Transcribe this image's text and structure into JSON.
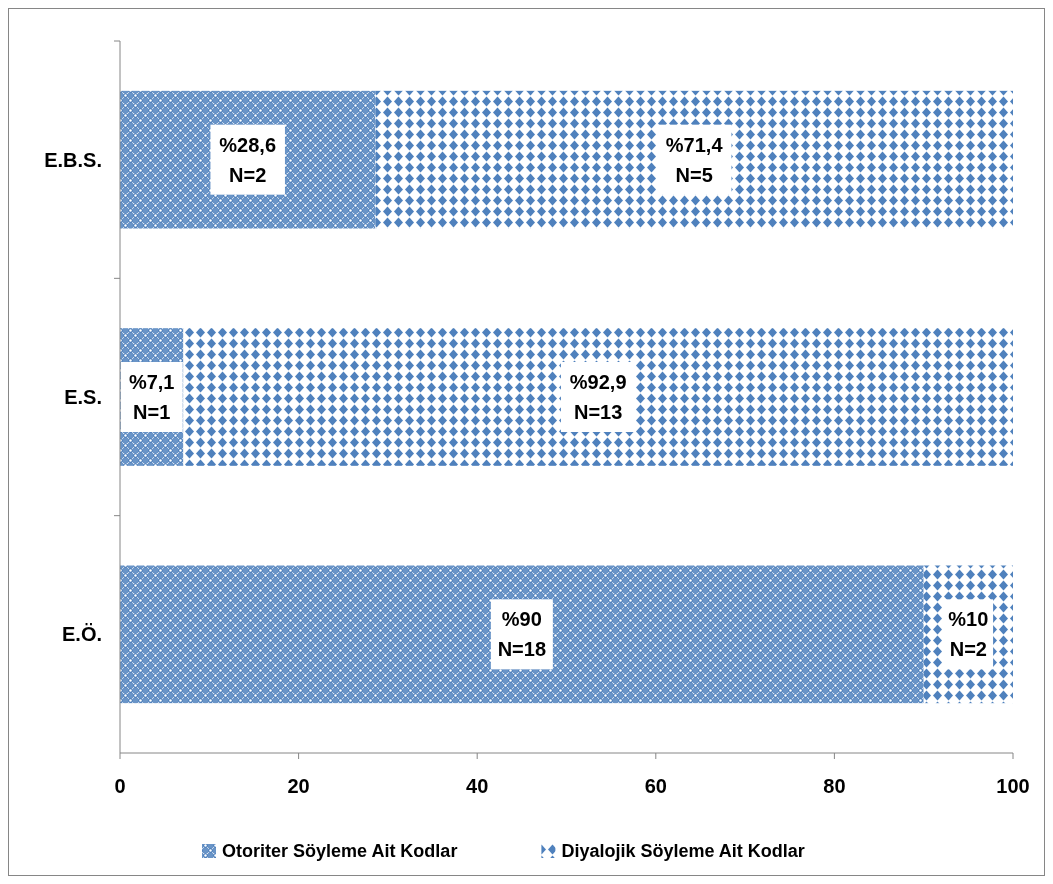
{
  "chart_data": {
    "type": "bar",
    "orientation": "horizontal",
    "stacked": true,
    "categories": [
      "E.B.S.",
      "E.S.",
      "E.Ö."
    ],
    "series": [
      {
        "name": "Otoriter Söyleme Ait Kodlar",
        "color": "#4f81bd",
        "values": [
          28.6,
          7.1,
          90
        ],
        "value_labels": [
          "%28,6\nN=2",
          "%7,1\nN=1",
          "%90\nN=18"
        ]
      },
      {
        "name": "Diyalojik Söyleme Ait Kodlar",
        "color": "#4f81bd",
        "values": [
          71.4,
          92.9,
          10
        ],
        "value_labels": [
          "%71,4\nN=5",
          "%92,9\nN=13",
          "%10\nN=2"
        ]
      }
    ],
    "xlim": [
      0,
      100
    ],
    "xticks": [
      0,
      20,
      40,
      60,
      80,
      100
    ],
    "grid": false,
    "legend": "bottom"
  }
}
